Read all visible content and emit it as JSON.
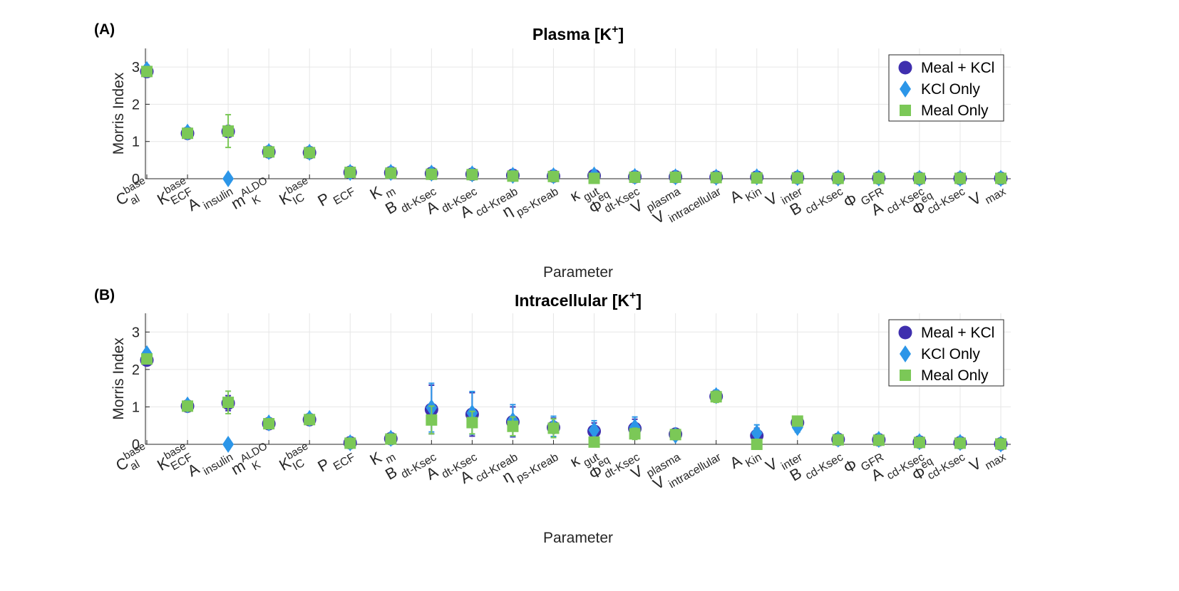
{
  "colors": {
    "meal_kcl": "#3F2FAE",
    "kcl_only": "#2C96E8",
    "meal_only": "#7BC857",
    "grid": "#E6E6E6",
    "axis": "#262626"
  },
  "parameters": [
    {
      "base": "C",
      "sub": "al",
      "sup": "base"
    },
    {
      "base": "K",
      "sub": "ECF",
      "sup": "base"
    },
    {
      "base": "A",
      "sub": "insulin",
      "sup": ""
    },
    {
      "base": "m",
      "sub": "K",
      "sup": "ALDO"
    },
    {
      "base": "K",
      "sub": "IC",
      "sup": "base"
    },
    {
      "base": "P",
      "sub": "ECF",
      "sup": ""
    },
    {
      "base": "K",
      "sub": "m",
      "sup": ""
    },
    {
      "base": "B",
      "sub": "dt-Ksec",
      "sup": ""
    },
    {
      "base": "A",
      "sub": "dt-Ksec",
      "sup": ""
    },
    {
      "base": "A",
      "sub": "cd-Kreab",
      "sup": ""
    },
    {
      "base": "η",
      "sub": "ps-Kreab",
      "sup": ""
    },
    {
      "base": "κ",
      "sub": "gut",
      "sup": ""
    },
    {
      "base": "Φ",
      "sub": "dt-Ksec",
      "sup": "eq"
    },
    {
      "base": "V",
      "sub": "plasma",
      "sup": ""
    },
    {
      "base": "V",
      "sub": "intracellular",
      "sup": ""
    },
    {
      "base": "A",
      "sub": "Kin",
      "sup": ""
    },
    {
      "base": "V",
      "sub": "inter",
      "sup": ""
    },
    {
      "base": "B",
      "sub": "cd-Ksec",
      "sup": ""
    },
    {
      "base": "Φ",
      "sub": "GFR",
      "sup": ""
    },
    {
      "base": "A",
      "sub": "cd-Ksec",
      "sup": ""
    },
    {
      "base": "Φ",
      "sub": "cd-Ksec",
      "sup": "eq"
    },
    {
      "base": "V",
      "sub": "max",
      "sup": ""
    }
  ],
  "chart_data": [
    {
      "type": "scatter",
      "panel_label": "(A)",
      "title_main": "Plasma [K",
      "title_sup": "+",
      "title_end": "]",
      "xlabel": "Parameter",
      "ylabel": "Morris Index",
      "ylim": [
        0,
        3.5
      ],
      "yticks": [
        "0",
        "1",
        "2",
        "3"
      ],
      "grid": true,
      "legend_position": "top-right",
      "series": [
        {
          "name": "Meal + KCl",
          "marker": "circle",
          "values": [
            2.88,
            1.22,
            1.27,
            0.72,
            0.7,
            0.17,
            0.16,
            0.14,
            0.12,
            0.09,
            0.07,
            0.08,
            0.05,
            0.05,
            0.04,
            0.04,
            0.03,
            0.02,
            0.02,
            0.01,
            0.01,
            0.01
          ],
          "errors": [
            0.12,
            0.05,
            0.05,
            0.05,
            0.05,
            0.03,
            0.03,
            0.05,
            0.04,
            0.04,
            0.03,
            0.04,
            0.03,
            0.02,
            0.02,
            0.02,
            0.01,
            0.01,
            0.01,
            0.01,
            0.01,
            0.01
          ]
        },
        {
          "name": "KCl Only",
          "marker": "diamond",
          "values": [
            2.93,
            1.25,
            0.0,
            0.73,
            0.71,
            0.17,
            0.17,
            0.15,
            0.13,
            0.09,
            0.08,
            0.1,
            0.06,
            0.05,
            0.04,
            0.05,
            0.03,
            0.02,
            0.02,
            0.01,
            0.01,
            0.01
          ],
          "errors": [
            0.12,
            0.05,
            0.0,
            0.05,
            0.05,
            0.03,
            0.03,
            0.05,
            0.04,
            0.04,
            0.03,
            0.04,
            0.03,
            0.02,
            0.02,
            0.02,
            0.01,
            0.01,
            0.01,
            0.01,
            0.01,
            0.01
          ]
        },
        {
          "name": "Meal Only",
          "marker": "square",
          "values": [
            2.88,
            1.22,
            1.28,
            0.72,
            0.7,
            0.17,
            0.15,
            0.12,
            0.11,
            0.07,
            0.06,
            0.01,
            0.04,
            0.04,
            0.03,
            0.02,
            0.02,
            0.01,
            0.01,
            0.01,
            0.01,
            0.01
          ],
          "errors": [
            0.12,
            0.05,
            0.44,
            0.05,
            0.05,
            0.03,
            0.03,
            0.05,
            0.04,
            0.04,
            0.03,
            0.0,
            0.03,
            0.02,
            0.02,
            0.02,
            0.01,
            0.01,
            0.01,
            0.01,
            0.01,
            0.01
          ]
        }
      ]
    },
    {
      "type": "scatter",
      "panel_label": "(B)",
      "title_main": "Intracellular [K",
      "title_sup": "+",
      "title_end": "]",
      "xlabel": "Parameter",
      "ylabel": "Morris Index",
      "ylim": [
        0,
        3.5
      ],
      "yticks": [
        "0",
        "1",
        "2",
        "3"
      ],
      "grid": true,
      "legend_position": "top-right",
      "series": [
        {
          "name": "Meal + KCl",
          "marker": "circle",
          "values": [
            2.25,
            1.02,
            1.1,
            0.55,
            0.66,
            0.04,
            0.15,
            0.93,
            0.8,
            0.6,
            0.45,
            0.35,
            0.42,
            0.27,
            1.28,
            0.23,
            0.58,
            0.13,
            0.12,
            0.06,
            0.04,
            0.01
          ],
          "errors": [
            0.1,
            0.05,
            0.2,
            0.05,
            0.05,
            0.02,
            0.03,
            0.65,
            0.58,
            0.4,
            0.25,
            0.22,
            0.25,
            0.05,
            0.15,
            0.2,
            0.12,
            0.03,
            0.03,
            0.02,
            0.02,
            0.01
          ]
        },
        {
          "name": "KCl Only",
          "marker": "diamond",
          "values": [
            2.42,
            1.05,
            0.0,
            0.57,
            0.69,
            0.04,
            0.16,
            0.98,
            0.84,
            0.64,
            0.48,
            0.38,
            0.46,
            0.24,
            1.3,
            0.3,
            0.45,
            0.14,
            0.13,
            0.07,
            0.05,
            0.01
          ],
          "errors": [
            0.1,
            0.05,
            0.0,
            0.05,
            0.05,
            0.02,
            0.03,
            0.65,
            0.57,
            0.42,
            0.27,
            0.25,
            0.27,
            0.05,
            0.15,
            0.22,
            0.12,
            0.03,
            0.03,
            0.02,
            0.02,
            0.01
          ]
        },
        {
          "name": "Meal Only",
          "marker": "square",
          "values": [
            2.28,
            1.02,
            1.12,
            0.55,
            0.66,
            0.03,
            0.14,
            0.65,
            0.58,
            0.48,
            0.43,
            0.06,
            0.28,
            0.26,
            1.27,
            0.0,
            0.62,
            0.12,
            0.11,
            0.05,
            0.03,
            0.01
          ],
          "errors": [
            0.1,
            0.05,
            0.3,
            0.05,
            0.05,
            0.02,
            0.03,
            0.37,
            0.3,
            0.25,
            0.25,
            0.0,
            0.15,
            0.05,
            0.15,
            0.0,
            0.1,
            0.03,
            0.03,
            0.02,
            0.02,
            0.01
          ]
        }
      ]
    }
  ]
}
